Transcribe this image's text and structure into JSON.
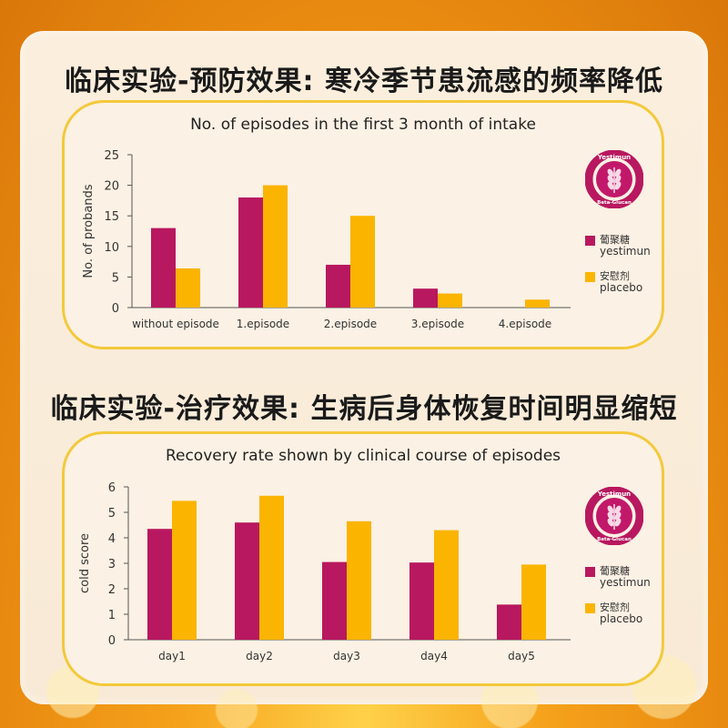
{
  "heading_prevention": "临床实验-预防效果: 寒冷季节患流感的频率降低",
  "heading_treatment": "临床实验-治疗效果: 生病后身体恢复时间明显缩短",
  "colors": {
    "yestimun": "#b8185f",
    "placebo": "#fbb400",
    "accent": "#f3c93a"
  },
  "logo": {
    "top_text": "Yestimun",
    "bottom_text": "Beta-Glucan",
    "icon": "wheat-icon"
  },
  "legend": [
    {
      "cn": "葡聚糖",
      "en": "yestimun"
    },
    {
      "cn": "安慰剂",
      "en": "placebo"
    }
  ],
  "chart_data": [
    {
      "type": "bar",
      "title": "No. of episodes in the first 3 month of intake",
      "xlabel": "",
      "ylabel": "No. of probands",
      "ylim": [
        0,
        25
      ],
      "yticks": [
        0,
        5,
        10,
        15,
        20,
        25
      ],
      "categories": [
        "without episode",
        "1.episode",
        "2.episode",
        "3.episode",
        "4.episode"
      ],
      "series": [
        {
          "name": "yestimun",
          "values": [
            13,
            18,
            7,
            3.1,
            0
          ]
        },
        {
          "name": "placebo",
          "values": [
            6.4,
            20,
            15,
            2.3,
            1.3
          ]
        }
      ],
      "grid": false,
      "legend_position": "right"
    },
    {
      "type": "bar",
      "title": "Recovery rate shown by clinical course of episodes",
      "xlabel": "",
      "ylabel": "cold score",
      "ylim": [
        0,
        6
      ],
      "yticks": [
        0,
        1,
        2,
        3,
        4,
        5,
        6
      ],
      "categories": [
        "day1",
        "day2",
        "day3",
        "day4",
        "day5"
      ],
      "series": [
        {
          "name": "yestimun",
          "values": [
            4.35,
            4.6,
            3.05,
            3.03,
            1.38
          ]
        },
        {
          "name": "placebo",
          "values": [
            5.45,
            5.65,
            4.65,
            4.3,
            2.95
          ]
        }
      ],
      "grid": false,
      "legend_position": "right"
    }
  ]
}
